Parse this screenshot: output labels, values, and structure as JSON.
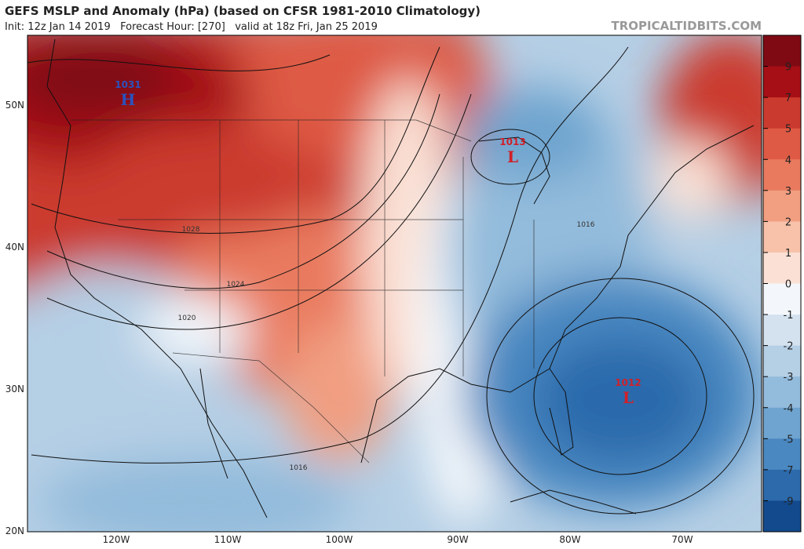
{
  "header": {
    "title": "GEFS MSLP and Anomaly (hPa) (based on CFSR 1981-2010 Climatology)",
    "subtitle": "Init: 12z Jan 14 2019   Forecast Hour: [270]   valid at 18z Fri, Jan 25 2019",
    "watermark": "TROPICALTIDBITS.COM"
  },
  "map": {
    "lat_labels": [
      "50N",
      "40N",
      "30N",
      "20N"
    ],
    "lon_labels": [
      "120W",
      "110W",
      "100W",
      "90W",
      "80W",
      "70W"
    ],
    "pressure_centers": [
      {
        "value": "1031",
        "symbol": "H"
      },
      {
        "value": "1013",
        "symbol": "L"
      },
      {
        "value": "1012",
        "symbol": "L"
      }
    ],
    "contour_labels": [
      "1028",
      "1024",
      "1020",
      "1016",
      "1016"
    ]
  },
  "colorbar": {
    "labels": [
      9,
      7,
      5,
      4,
      3,
      2,
      1,
      0,
      -1,
      -2,
      -3,
      -4,
      -5,
      -7,
      -9
    ],
    "colors": [
      "#7f0a14",
      "#a50f15",
      "#cb3a2e",
      "#de5a44",
      "#e97a5e",
      "#f19e81",
      "#f7c1aa",
      "#fbe1d5",
      "#f3f7fb",
      "#d4e2ef",
      "#b5cfe5",
      "#93bbdb",
      "#6ea4cf",
      "#4a88c1",
      "#2c6aac",
      "#124a8d"
    ]
  }
}
